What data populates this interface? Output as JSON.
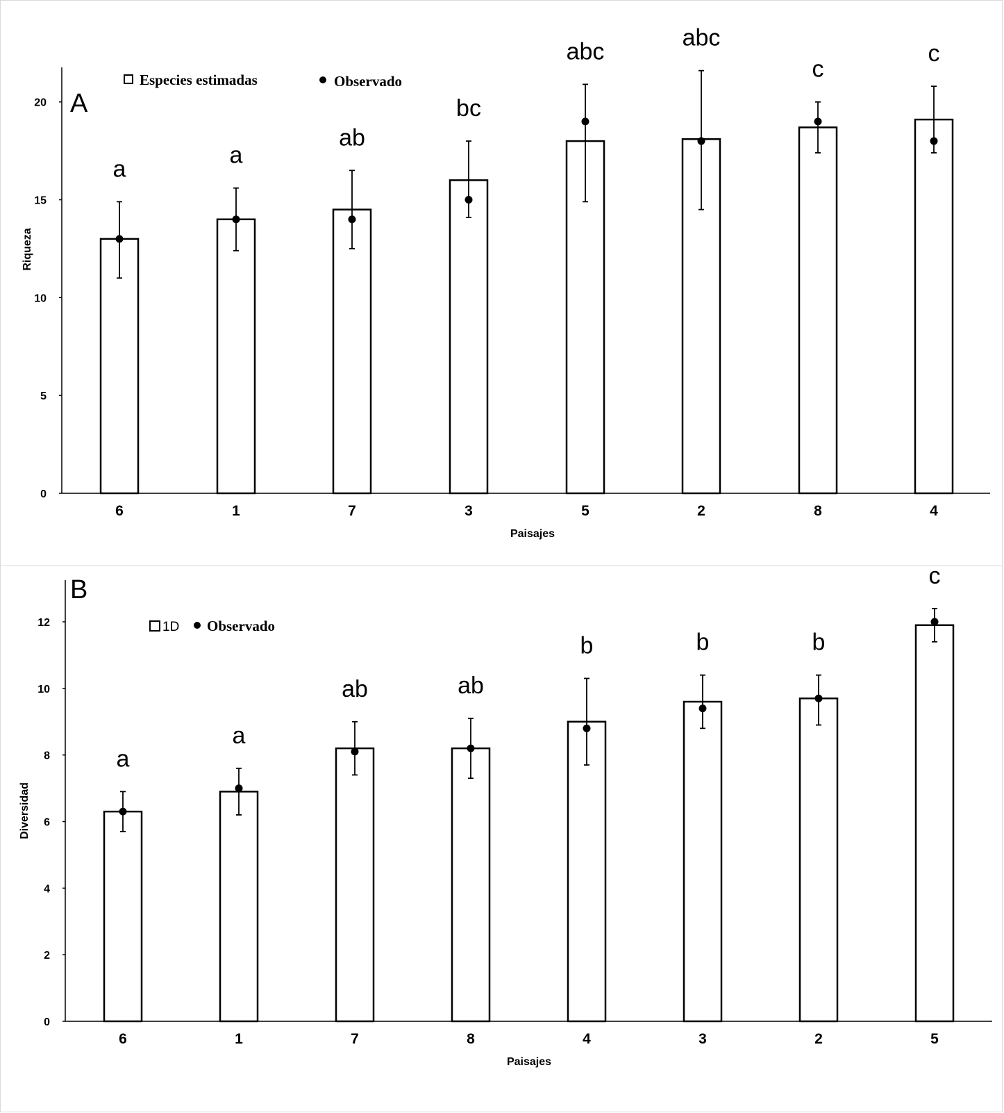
{
  "chart_data": [
    {
      "type": "bar",
      "panel_label": "A",
      "xlabel": "Paisajes",
      "ylabel": "Riqueza",
      "ylim": [
        0,
        22
      ],
      "yticks": [
        0,
        5,
        10,
        15,
        20
      ],
      "categories": [
        "6",
        "1",
        "7",
        "3",
        "5",
        "2",
        "8",
        "4"
      ],
      "legend": {
        "bar_label": "Especies estimadas",
        "point_label": "Observado",
        "position": "top-left"
      },
      "series": [
        {
          "name": "Especies estimadas",
          "kind": "bar",
          "values": [
            13.0,
            14.0,
            14.5,
            16.0,
            18.0,
            18.1,
            18.7,
            19.1
          ],
          "err_low": [
            11.0,
            12.4,
            12.5,
            14.1,
            14.9,
            14.5,
            17.4,
            17.4
          ],
          "err_high": [
            14.9,
            15.6,
            16.5,
            18.0,
            20.9,
            21.6,
            20.0,
            20.8
          ]
        },
        {
          "name": "Observado",
          "kind": "point",
          "values": [
            13,
            14,
            14,
            15,
            19,
            18,
            19,
            18
          ]
        }
      ],
      "significance": [
        "a",
        "a",
        "ab",
        "bc",
        "abc",
        "abc",
        "c",
        "c"
      ]
    },
    {
      "type": "bar",
      "panel_label": "B",
      "xlabel": "Paisajes",
      "ylabel": "Diversidad",
      "ylim": [
        0,
        13
      ],
      "yticks": [
        0,
        2,
        4,
        6,
        8,
        10,
        12
      ],
      "categories": [
        "6",
        "1",
        "7",
        "8",
        "4",
        "3",
        "2",
        "5"
      ],
      "legend": {
        "bar_label": "1D",
        "point_label": "Observado",
        "position": "top-left"
      },
      "series": [
        {
          "name": "1D",
          "kind": "bar",
          "values": [
            6.3,
            6.9,
            8.2,
            8.2,
            9.0,
            9.6,
            9.7,
            11.9
          ],
          "err_low": [
            5.7,
            6.2,
            7.4,
            7.3,
            7.7,
            8.8,
            8.9,
            11.4
          ],
          "err_high": [
            6.9,
            7.6,
            9.0,
            9.1,
            10.3,
            10.4,
            10.4,
            12.4
          ]
        },
        {
          "name": "Observado",
          "kind": "point",
          "values": [
            6.3,
            7.0,
            8.1,
            8.2,
            8.8,
            9.4,
            9.7,
            12.0
          ]
        }
      ],
      "significance": [
        "a",
        "a",
        "ab",
        "ab",
        "b",
        "b",
        "b",
        "c"
      ]
    }
  ]
}
